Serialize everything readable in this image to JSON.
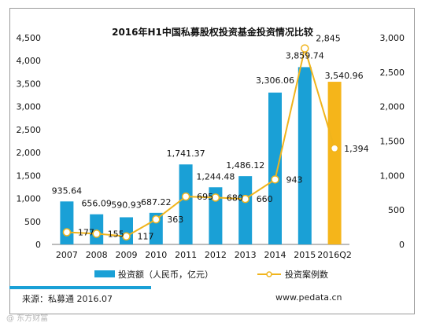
{
  "chart_data": {
    "type": "bar+line",
    "title": "2016年H1中国私募股权投资基金投资情况比较",
    "categories": [
      "2007",
      "2008",
      "2009",
      "2010",
      "2011",
      "2012",
      "2013",
      "2014",
      "2015",
      "2016Q2"
    ],
    "series": [
      {
        "name": "投资额（人民币，亿元）",
        "type": "bar",
        "axis": "left",
        "values": [
          935.64,
          656.09,
          590.93,
          687.22,
          1741.37,
          1244.48,
          1486.12,
          3306.06,
          3859.74,
          3540.96
        ],
        "labels": [
          "935.64",
          "656.09",
          "590.93",
          "687.22",
          "1,741.37",
          "1,244.48",
          "1,486.12",
          "3,306.06",
          "3,859.74",
          "3,540.96"
        ],
        "color": "#1aa0d6",
        "highlight_color": "#f5b51a",
        "highlight_index": 9
      },
      {
        "name": "投资案例数",
        "type": "line",
        "axis": "right",
        "values": [
          177,
          155,
          117,
          363,
          695,
          680,
          660,
          943,
          2845,
          1394
        ],
        "labels": [
          "177",
          "155",
          "117",
          "363",
          "695",
          "680",
          "660",
          "943",
          "2,845",
          "1,394"
        ],
        "color": "#f0b41c"
      }
    ],
    "left_axis": {
      "ylim": [
        0,
        4500
      ],
      "ticks": [
        0,
        500,
        1000,
        1500,
        2000,
        2500,
        3000,
        3500,
        4000,
        4500
      ],
      "tick_labels": [
        "0",
        "500",
        "1,000",
        "1,500",
        "2,000",
        "2,500",
        "3,000",
        "3,500",
        "4,000",
        "4,500"
      ]
    },
    "right_axis": {
      "ylim": [
        0,
        3000
      ],
      "ticks": [
        0,
        500,
        1000,
        1500,
        2000,
        2500,
        3000
      ],
      "tick_labels": [
        "0",
        "500",
        "1,000",
        "1,500",
        "2,000",
        "2,500",
        "3,000"
      ]
    },
    "grid": false,
    "legend_position": "bottom"
  },
  "footer": {
    "source": "来源：私募通 2016.07",
    "website": "www.pedata.cn"
  },
  "watermark": "@ 东方财富"
}
